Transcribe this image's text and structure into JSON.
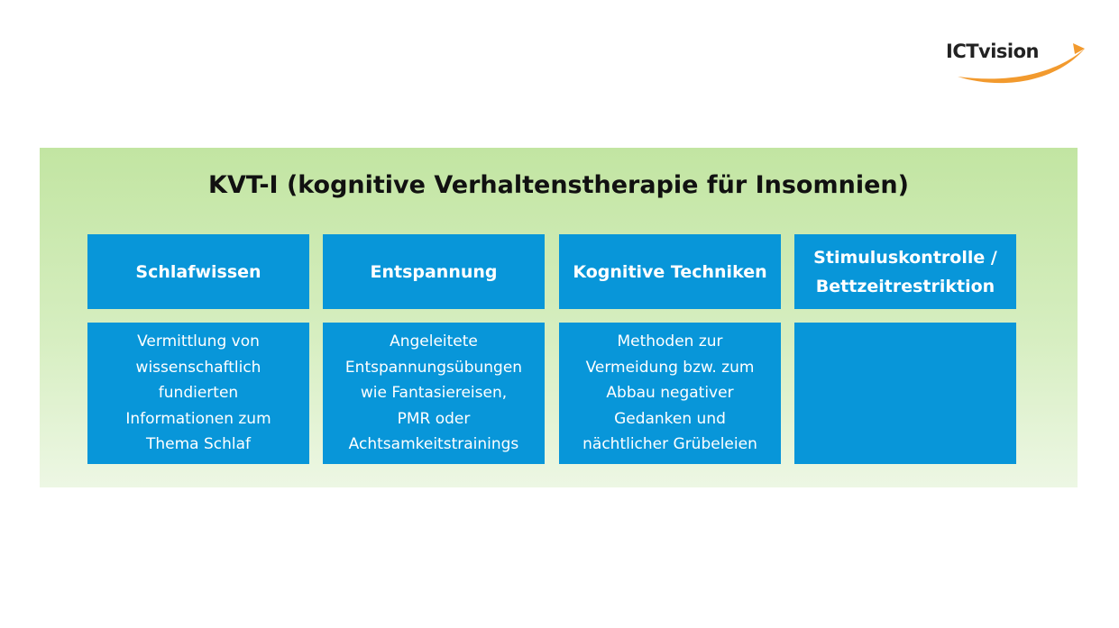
{
  "logo": {
    "text": "ICTvision",
    "swoosh_color": "#f29a2e"
  },
  "diagram": {
    "title": "KVT-I (kognitive Verhaltenstherapie für Insomnien)",
    "colors": {
      "panel_background": "#c6e7a8",
      "box_fill": "#0896d9",
      "box_text": "#ffffff"
    },
    "columns": [
      {
        "heading": "Schlafwissen",
        "description": "Vermittlung von\nwissenschaftlich\nfundierten\nInformationen zum\nThema Schlaf"
      },
      {
        "heading": "Entspannung",
        "description": "Angeleitete\nEntspannungsübungen\nwie Fantasiereisen,\nPMR oder\nAchtsamkeitstrainings"
      },
      {
        "heading": "Kognitive Techniken",
        "description": "Methoden zur\nVermeidung bzw. zum\nAbbau negativer\nGedanken und\nnächtlicher Grübeleien"
      },
      {
        "heading": "Stimuluskontrolle /\nBettzeitrestriktion",
        "description": ""
      }
    ]
  }
}
